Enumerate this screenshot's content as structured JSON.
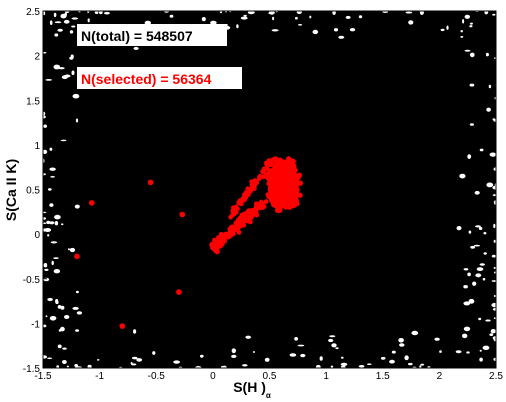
{
  "chart_data": {
    "type": "scatter",
    "title": "",
    "xlabel": "S(H )",
    "xlabel_subscript": "α",
    "ylabel": "S(Ca II K)",
    "xlim": [
      -1.5,
      2.5
    ],
    "ylim": [
      -1.5,
      2.5
    ],
    "xticks": [
      -1.5,
      -1,
      -0.5,
      0,
      0.5,
      1,
      1.5,
      2,
      2.5
    ],
    "xtick_labels": [
      "-1.5",
      "-1",
      "-0.5",
      "0",
      "0.5",
      "1",
      "1.5",
      "2",
      "2.5"
    ],
    "yticks": [
      -1.5,
      -1,
      -0.5,
      0,
      0.5,
      1,
      1.5,
      2,
      2.5
    ],
    "ytick_labels": [
      "-1.5",
      "-1",
      "-0.5",
      "0",
      "0.5",
      "1",
      "1.5",
      "2",
      "2.5"
    ],
    "grid": false,
    "annotations": [
      {
        "text": "N(total) = 548507",
        "color": "#000000"
      },
      {
        "text": "N(selected) = 56364",
        "color": "#ff0000"
      }
    ],
    "series": [
      {
        "color": "#000000",
        "description_points": "dense cloud filling the full plot area",
        "count_label": "N(total) = 548507"
      },
      {
        "color": "#ff0000",
        "count_label": "N(selected) = 56364",
        "outlier_points": [
          {
            "x": -1.07,
            "y": 0.35
          },
          {
            "x": -1.2,
            "y": -0.25
          },
          {
            "x": -0.55,
            "y": 0.58
          },
          {
            "x": -0.27,
            "y": 0.22
          },
          {
            "x": -0.3,
            "y": -0.65
          },
          {
            "x": -0.8,
            "y": -1.03
          }
        ],
        "core": {
          "x_center": 0.62,
          "y_center": 0.55,
          "x_range": [
            0.45,
            0.82
          ],
          "y_range": [
            0.25,
            0.95
          ]
        },
        "tail": {
          "x_range": [
            0.0,
            0.45
          ],
          "y_range": [
            -0.15,
            0.35
          ]
        }
      }
    ]
  }
}
